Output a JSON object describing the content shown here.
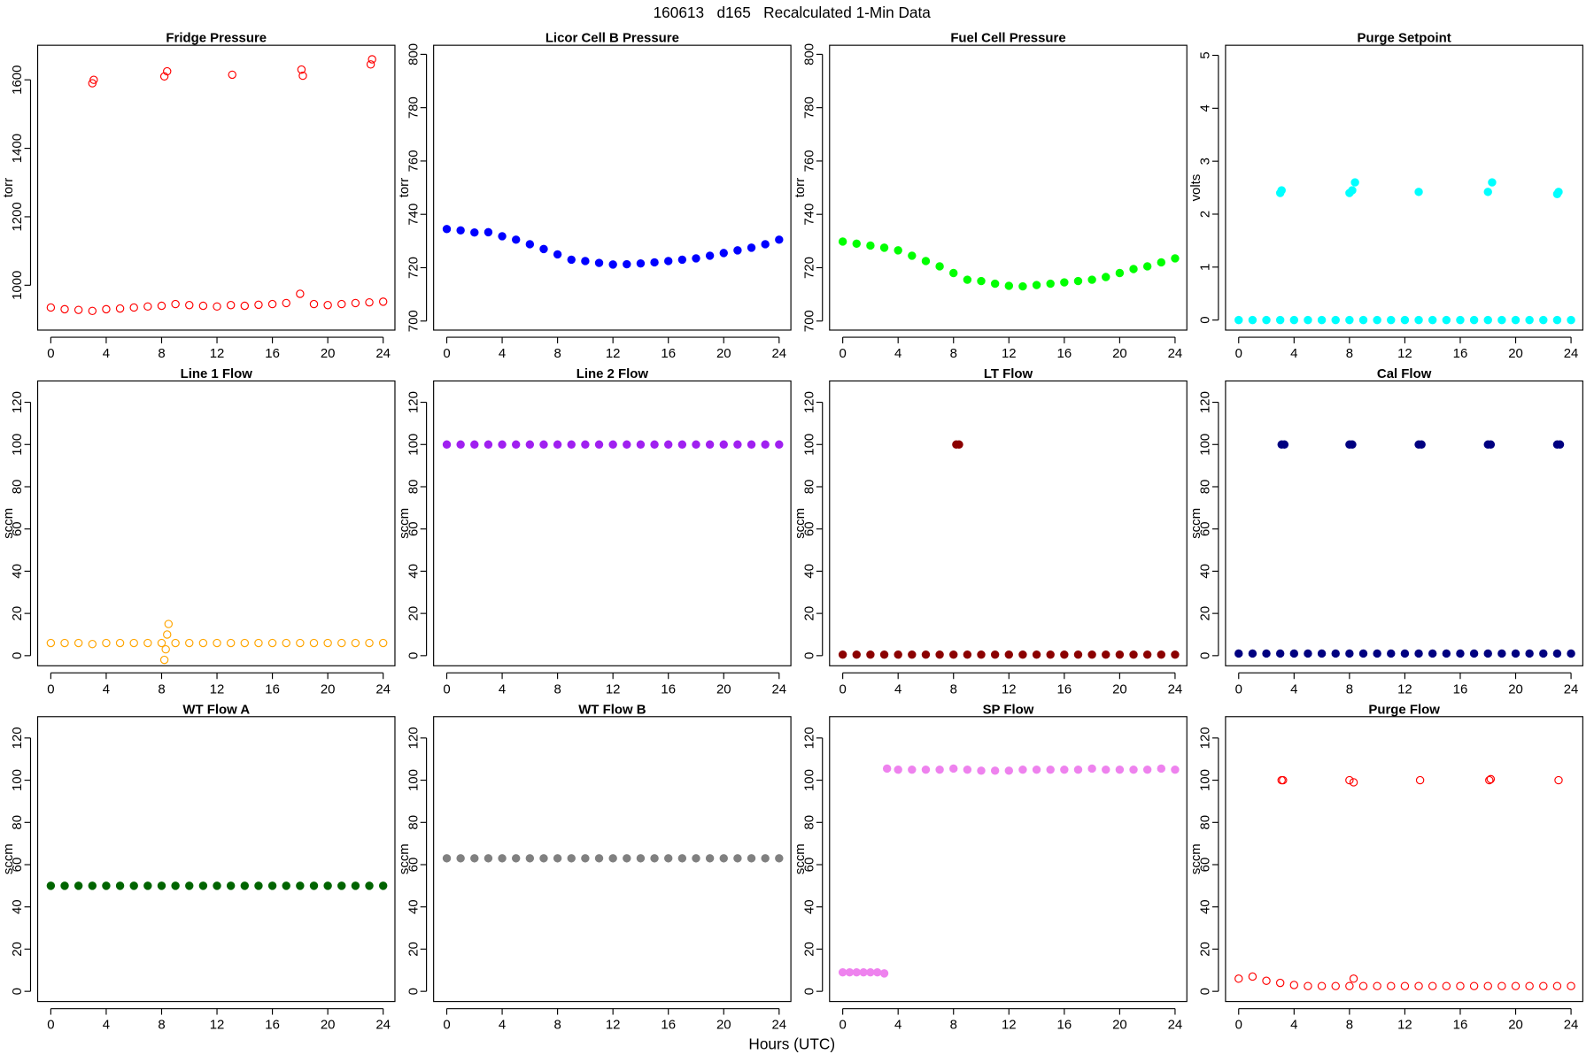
{
  "title": "160613   d165   Recalculated 1-Min Data",
  "xlabel": "Hours (UTC)",
  "chart_data": [
    {
      "type": "scatter",
      "title": "Fridge Pressure",
      "ylabel": "torr",
      "color": "#ff0000",
      "marker": "open",
      "x": [
        0,
        1,
        2,
        3,
        3,
        3.1,
        4,
        5,
        6,
        7,
        8,
        8.2,
        8.4,
        9,
        10,
        11,
        12,
        13,
        13.1,
        14,
        15,
        16,
        17,
        18,
        18.1,
        18.2,
        19,
        20,
        21,
        22,
        23,
        23.1,
        23.2,
        24
      ],
      "values": [
        935,
        930,
        928,
        925,
        1590,
        1600,
        930,
        932,
        935,
        938,
        940,
        1610,
        1625,
        945,
        942,
        940,
        938,
        942,
        1615,
        940,
        943,
        945,
        948,
        975,
        1630,
        1612,
        945,
        942,
        945,
        948,
        950,
        1645,
        1660,
        952
      ],
      "xlim": [
        -0.95,
        24.85
      ],
      "xticks": [
        0,
        4,
        8,
        12,
        16,
        20,
        24
      ],
      "ylim": [
        869,
        1701
      ],
      "yticks": [
        1000,
        1200,
        1400,
        1600
      ]
    },
    {
      "type": "scatter",
      "title": "Licor Cell B Pressure",
      "ylabel": "torr",
      "color": "#0000ff",
      "marker": "filled",
      "x": [
        0,
        1,
        2,
        3,
        4,
        5,
        6,
        7,
        8,
        9,
        10,
        11,
        12,
        13,
        14,
        15,
        16,
        17,
        18,
        19,
        20,
        21,
        22,
        23,
        24
      ],
      "values": [
        734.5,
        734,
        733.2,
        733.3,
        731.8,
        730.5,
        728.8,
        727,
        725,
        723,
        722.5,
        721.8,
        721.2,
        721.3,
        721.6,
        722,
        722.5,
        723,
        723.5,
        724.5,
        725.5,
        726.5,
        727.5,
        728.8,
        730.5
      ],
      "xlim": [
        -0.95,
        24.85
      ],
      "xticks": [
        0,
        4,
        8,
        12,
        16,
        20,
        24
      ],
      "ylim": [
        696.6,
        803.4
      ],
      "yticks": [
        700,
        720,
        740,
        760,
        780,
        800
      ]
    },
    {
      "type": "scatter",
      "title": "Fuel Cell Pressure",
      "ylabel": "torr",
      "color": "#00ff00",
      "marker": "filled",
      "x": [
        0,
        1,
        2,
        3,
        4,
        5,
        6,
        7,
        8,
        9,
        10,
        11,
        12,
        13,
        14,
        15,
        16,
        17,
        18,
        19,
        20,
        21,
        22,
        23,
        24
      ],
      "values": [
        729.8,
        729,
        728.3,
        727.5,
        726.5,
        724.5,
        722.5,
        720.5,
        718,
        715.5,
        715,
        714,
        713.2,
        713,
        713.5,
        714,
        714.5,
        715,
        715.5,
        716.5,
        718,
        719.5,
        720.5,
        722,
        723.5
      ],
      "xlim": [
        -0.95,
        24.85
      ],
      "xticks": [
        0,
        4,
        8,
        12,
        16,
        20,
        24
      ],
      "ylim": [
        696.6,
        803.4
      ],
      "yticks": [
        700,
        720,
        740,
        760,
        780,
        800
      ]
    },
    {
      "type": "scatter",
      "title": "Purge Setpoint",
      "ylabel": "volts",
      "color": "#00ffff",
      "marker": "filled",
      "x": [
        0,
        1,
        2,
        3,
        3,
        3.1,
        4,
        5,
        6,
        7,
        8,
        8,
        8.2,
        8.4,
        9,
        10,
        11,
        12,
        13,
        13,
        14,
        15,
        16,
        17,
        18,
        18,
        18.3,
        19,
        20,
        21,
        22,
        23,
        23,
        23.1,
        24
      ],
      "values": [
        0,
        0,
        0,
        0,
        2.4,
        2.45,
        0,
        0,
        0,
        0,
        0,
        2.4,
        2.45,
        2.6,
        0,
        0,
        0,
        0,
        0,
        2.42,
        0,
        0,
        0,
        0,
        0,
        2.42,
        2.6,
        0,
        0,
        0,
        0,
        0,
        2.38,
        2.42,
        0
      ],
      "xlim": [
        -0.95,
        24.85
      ],
      "xticks": [
        0,
        4,
        8,
        12,
        16,
        20,
        24
      ],
      "ylim": [
        -0.19,
        5.19
      ],
      "yticks": [
        0,
        1,
        2,
        3,
        4,
        5
      ]
    },
    {
      "type": "scatter",
      "title": "Line 1 Flow",
      "ylabel": "sccm",
      "color": "#ffa500",
      "marker": "open",
      "x": [
        0,
        1,
        2,
        3,
        4,
        5,
        6,
        7,
        8,
        8.2,
        8.3,
        8.4,
        8.5,
        9,
        10,
        11,
        12,
        13,
        14,
        15,
        16,
        17,
        18,
        19,
        20,
        21,
        22,
        23,
        24
      ],
      "values": [
        6,
        6,
        6,
        5.5,
        6,
        6,
        6,
        6,
        6,
        -2,
        3,
        10,
        15,
        6,
        6,
        6,
        6,
        6,
        6,
        6,
        6,
        6,
        6,
        6,
        6,
        6,
        6,
        6,
        6
      ],
      "xlim": [
        -0.95,
        24.85
      ],
      "xticks": [
        0,
        4,
        8,
        12,
        16,
        20,
        24
      ],
      "ylim": [
        -4.8,
        130.1
      ],
      "yticks": [
        0,
        20,
        40,
        60,
        80,
        100,
        120
      ]
    },
    {
      "type": "scatter",
      "title": "Line 2 Flow",
      "ylabel": "sccm",
      "color": "#a020f0",
      "marker": "filled",
      "x": [
        0,
        1,
        2,
        3,
        4,
        5,
        6,
        7,
        8,
        9,
        10,
        11,
        12,
        13,
        14,
        15,
        16,
        17,
        18,
        19,
        20,
        21,
        22,
        23,
        24
      ],
      "values": [
        100,
        100,
        100,
        100,
        100,
        100,
        100,
        100,
        100,
        100,
        100,
        100,
        100,
        100,
        100,
        100,
        100,
        100,
        100,
        100,
        100,
        100,
        100,
        100,
        100
      ],
      "xlim": [
        -0.95,
        24.85
      ],
      "xticks": [
        0,
        4,
        8,
        12,
        16,
        20,
        24
      ],
      "ylim": [
        -4.8,
        130.1
      ],
      "yticks": [
        0,
        20,
        40,
        60,
        80,
        100,
        120
      ]
    },
    {
      "type": "scatter",
      "title": "LT Flow",
      "ylabel": "sccm",
      "color": "#8b0000",
      "marker": "filled",
      "x": [
        0,
        1,
        2,
        3,
        4,
        5,
        6,
        7,
        8,
        8.2,
        8.4,
        9,
        10,
        11,
        12,
        13,
        14,
        15,
        16,
        17,
        18,
        19,
        20,
        21,
        22,
        23,
        24
      ],
      "values": [
        0.5,
        0.5,
        0.5,
        0.5,
        0.5,
        0.5,
        0.5,
        0.5,
        0.5,
        100,
        100,
        0.5,
        0.5,
        0.5,
        0.5,
        0.5,
        0.5,
        0.5,
        0.5,
        0.5,
        0.5,
        0.5,
        0.5,
        0.5,
        0.5,
        0.5,
        0.5
      ],
      "xlim": [
        -0.95,
        24.85
      ],
      "xticks": [
        0,
        4,
        8,
        12,
        16,
        20,
        24
      ],
      "ylim": [
        -4.8,
        130.1
      ],
      "yticks": [
        0,
        20,
        40,
        60,
        80,
        100,
        120
      ]
    },
    {
      "type": "scatter",
      "title": "Cal Flow",
      "ylabel": "sccm",
      "color": "#000080",
      "marker": "filled",
      "x": [
        0,
        1,
        2,
        3,
        3.1,
        3.3,
        4,
        5,
        6,
        7,
        8,
        8,
        8.2,
        9,
        10,
        11,
        12,
        13,
        13,
        13.2,
        14,
        15,
        16,
        17,
        18,
        18,
        18.2,
        19,
        20,
        21,
        22,
        23,
        23,
        23.2,
        24
      ],
      "values": [
        1,
        1,
        1,
        1,
        100,
        100,
        1,
        1,
        1,
        1,
        1,
        100,
        100,
        1,
        1,
        1,
        1,
        1,
        100,
        100,
        1,
        1,
        1,
        1,
        1,
        100,
        100,
        1,
        1,
        1,
        1,
        1,
        100,
        100,
        1
      ],
      "xlim": [
        -0.95,
        24.85
      ],
      "xticks": [
        0,
        4,
        8,
        12,
        16,
        20,
        24
      ],
      "ylim": [
        -4.8,
        130.1
      ],
      "yticks": [
        0,
        20,
        40,
        60,
        80,
        100,
        120
      ]
    },
    {
      "type": "scatter",
      "title": "WT Flow A",
      "ylabel": "sccm",
      "color": "#006400",
      "marker": "filled",
      "x": [
        0,
        1,
        2,
        3,
        4,
        5,
        6,
        7,
        8,
        9,
        10,
        11,
        12,
        13,
        14,
        15,
        16,
        17,
        18,
        19,
        20,
        21,
        22,
        23,
        24
      ],
      "values": [
        50,
        50,
        50,
        50,
        50,
        50,
        50,
        50,
        50,
        50,
        50,
        50,
        50,
        50,
        50,
        50,
        50,
        50,
        50,
        50,
        50,
        50,
        50,
        50,
        50
      ],
      "xlim": [
        -0.95,
        24.85
      ],
      "xticks": [
        0,
        4,
        8,
        12,
        16,
        20,
        24
      ],
      "ylim": [
        -4.8,
        130.1
      ],
      "yticks": [
        0,
        20,
        40,
        60,
        80,
        100,
        120
      ]
    },
    {
      "type": "scatter",
      "title": "WT Flow B",
      "ylabel": "sccm",
      "color": "#808080",
      "marker": "filled",
      "x": [
        0,
        1,
        2,
        3,
        4,
        5,
        6,
        7,
        8,
        9,
        10,
        11,
        12,
        13,
        14,
        15,
        16,
        17,
        18,
        19,
        20,
        21,
        22,
        23,
        24
      ],
      "values": [
        63,
        63,
        63,
        63,
        63,
        63,
        63,
        63,
        63,
        63,
        63,
        63,
        63,
        63,
        63,
        63,
        63,
        63,
        63,
        63,
        63,
        63,
        63,
        63,
        63
      ],
      "xlim": [
        -0.95,
        24.85
      ],
      "xticks": [
        0,
        4,
        8,
        12,
        16,
        20,
        24
      ],
      "ylim": [
        -4.8,
        130.1
      ],
      "yticks": [
        0,
        20,
        40,
        60,
        80,
        100,
        120
      ]
    },
    {
      "type": "scatter",
      "title": "SP Flow",
      "ylabel": "sccm",
      "color": "#ee82ee",
      "marker": "filled",
      "x": [
        0,
        0.5,
        1,
        1.5,
        2,
        2.5,
        3,
        3.2,
        4,
        5,
        6,
        7,
        8,
        9,
        10,
        11,
        12,
        13,
        14,
        15,
        16,
        17,
        18,
        19,
        20,
        21,
        22,
        23,
        24
      ],
      "values": [
        9,
        9,
        9,
        9,
        9,
        9,
        8.5,
        105.5,
        105,
        105,
        105,
        105,
        105.5,
        105,
        104.5,
        104.5,
        104.5,
        105,
        105,
        105,
        105,
        105,
        105.5,
        105,
        105,
        105,
        105,
        105.5,
        105
      ],
      "xlim": [
        -0.95,
        24.85
      ],
      "xticks": [
        0,
        4,
        8,
        12,
        16,
        20,
        24
      ],
      "ylim": [
        -4.8,
        130.1
      ],
      "yticks": [
        0,
        20,
        40,
        60,
        80,
        100,
        120
      ]
    },
    {
      "type": "scatter",
      "title": "Purge Flow",
      "ylabel": "sccm",
      "color": "#ff0000",
      "marker": "open",
      "x": [
        0,
        1,
        2,
        3,
        3.1,
        3.2,
        4,
        5,
        6,
        7,
        8,
        8,
        8.3,
        8.3,
        9,
        10,
        11,
        12,
        13,
        13.1,
        14,
        15,
        16,
        17,
        18,
        18.1,
        18.2,
        19,
        20,
        21,
        22,
        23,
        23.1,
        24
      ],
      "values": [
        6,
        7,
        5,
        4,
        100,
        100,
        3,
        2.5,
        2.5,
        2.5,
        2.5,
        100,
        6,
        99,
        2.5,
        2.5,
        2.5,
        2.5,
        2.5,
        100,
        2.5,
        2.5,
        2.5,
        2.5,
        2.5,
        100,
        100.5,
        2.5,
        2.5,
        2.5,
        2.5,
        2.5,
        100,
        2.5
      ],
      "xlim": [
        -0.95,
        24.85
      ],
      "xticks": [
        0,
        4,
        8,
        12,
        16,
        20,
        24
      ],
      "ylim": [
        -4.8,
        130.1
      ],
      "yticks": [
        0,
        20,
        40,
        60,
        80,
        100,
        120
      ]
    }
  ]
}
